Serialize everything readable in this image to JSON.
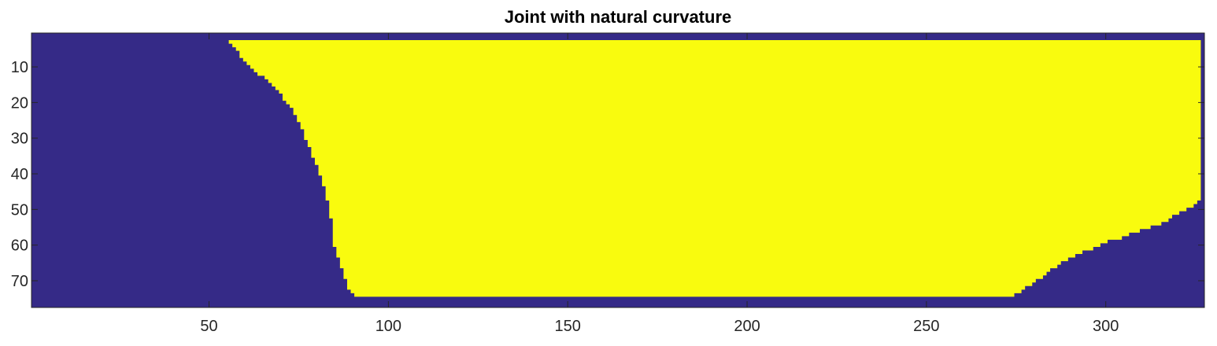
{
  "chart_data": {
    "type": "heatmap",
    "title": "Joint with natural curvature",
    "xlabel": "",
    "ylabel": "",
    "xlim": [
      0.5,
      327.5
    ],
    "ylim": [
      0.5,
      77.5
    ],
    "y_direction": "reverse",
    "grid": false,
    "colors": {
      "background": "#352a87",
      "region": "#f9fb0e"
    },
    "xticks": [
      50,
      100,
      150,
      200,
      250,
      300
    ],
    "yticks": [
      10,
      20,
      30,
      40,
      50,
      60,
      70
    ],
    "region": {
      "row_start": 3,
      "row_end": 74,
      "left_boundary": [
        [
          3,
          56
        ],
        [
          4,
          57
        ],
        [
          5,
          58
        ],
        [
          6,
          59
        ],
        [
          8,
          60
        ],
        [
          9,
          61
        ],
        [
          10,
          62
        ],
        [
          11,
          63
        ],
        [
          12,
          64
        ],
        [
          13,
          66
        ],
        [
          14,
          67
        ],
        [
          15,
          68
        ],
        [
          16,
          69
        ],
        [
          17,
          70
        ],
        [
          18,
          71
        ],
        [
          20,
          72
        ],
        [
          21,
          73
        ],
        [
          22,
          74
        ],
        [
          24,
          75
        ],
        [
          26,
          76
        ],
        [
          28,
          77
        ],
        [
          31,
          78
        ],
        [
          33,
          79
        ],
        [
          36,
          80
        ],
        [
          38,
          81
        ],
        [
          41,
          82
        ],
        [
          44,
          83
        ],
        [
          48,
          84
        ],
        [
          53,
          85
        ],
        [
          61,
          86
        ],
        [
          64,
          87
        ],
        [
          67,
          88
        ],
        [
          70,
          89
        ],
        [
          73,
          90
        ],
        [
          74,
          91
        ]
      ],
      "right_boundary": [
        [
          3,
          326
        ],
        [
          48,
          325
        ],
        [
          49,
          324
        ],
        [
          50,
          322
        ],
        [
          51,
          320
        ],
        [
          52,
          318
        ],
        [
          53,
          317
        ],
        [
          54,
          315
        ],
        [
          55,
          312
        ],
        [
          56,
          309
        ],
        [
          57,
          306
        ],
        [
          58,
          304
        ],
        [
          59,
          300
        ],
        [
          60,
          298
        ],
        [
          61,
          296
        ],
        [
          62,
          293
        ],
        [
          63,
          291
        ],
        [
          64,
          289
        ],
        [
          65,
          287
        ],
        [
          66,
          286
        ],
        [
          67,
          284
        ],
        [
          68,
          283
        ],
        [
          69,
          282
        ],
        [
          70,
          280
        ],
        [
          71,
          279
        ],
        [
          72,
          277
        ],
        [
          73,
          276
        ],
        [
          74,
          274
        ]
      ]
    }
  }
}
